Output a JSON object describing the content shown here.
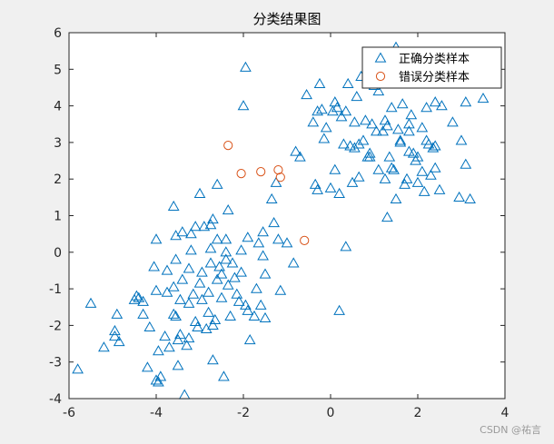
{
  "chart_data": {
    "type": "scatter",
    "title": "分类结果图",
    "xlabel": "",
    "ylabel": "",
    "xlim": [
      -6,
      4
    ],
    "ylim": [
      -4,
      6
    ],
    "xticks": [
      -6,
      -4,
      -2,
      0,
      2,
      4
    ],
    "yticks": [
      -4,
      -3,
      -2,
      -1,
      0,
      1,
      2,
      3,
      4,
      5,
      6
    ],
    "grid": false,
    "legend_position": "top-right",
    "series": [
      {
        "name": "正确分类样本",
        "marker": "triangle",
        "color": "#0072BD",
        "points": [
          [
            -5.8,
            -3.2
          ],
          [
            -5.5,
            -1.4
          ],
          [
            -5.2,
            -2.6
          ],
          [
            -4.95,
            -2.3
          ],
          [
            -4.95,
            -2.15
          ],
          [
            -4.9,
            -1.7
          ],
          [
            -4.85,
            -2.45
          ],
          [
            -4.5,
            -1.3
          ],
          [
            -4.45,
            -1.2
          ],
          [
            -4.4,
            -1.25
          ],
          [
            -4.3,
            -1.35
          ],
          [
            -4.3,
            -1.7
          ],
          [
            -4.15,
            -2.05
          ],
          [
            -4.2,
            -3.15
          ],
          [
            -4.0,
            -1.05
          ],
          [
            -4.05,
            -0.4
          ],
          [
            -4.0,
            0.35
          ],
          [
            -3.95,
            -2.7
          ],
          [
            -4.0,
            -3.5
          ],
          [
            -3.95,
            -3.55
          ],
          [
            -3.9,
            -3.4
          ],
          [
            -3.8,
            -2.3
          ],
          [
            -3.75,
            -1.1
          ],
          [
            -3.75,
            -0.5
          ],
          [
            -3.7,
            -2.6
          ],
          [
            -3.6,
            -1.7
          ],
          [
            -3.55,
            -1.75
          ],
          [
            -3.6,
            -0.95
          ],
          [
            -3.55,
            -0.2
          ],
          [
            -3.55,
            0.45
          ],
          [
            -3.6,
            1.25
          ],
          [
            -3.5,
            -2.4
          ],
          [
            -3.5,
            -3.1
          ],
          [
            -3.45,
            -2.25
          ],
          [
            -3.45,
            -1.3
          ],
          [
            -3.4,
            -0.75
          ],
          [
            -3.4,
            0.55
          ],
          [
            -3.35,
            -3.9
          ],
          [
            -3.3,
            -2.55
          ],
          [
            -3.25,
            -2.35
          ],
          [
            -3.25,
            -1.4
          ],
          [
            -3.25,
            -0.45
          ],
          [
            -3.2,
            0.5
          ],
          [
            -3.2,
            0.05
          ],
          [
            -3.15,
            -1.15
          ],
          [
            -3.1,
            0.7
          ],
          [
            -3.1,
            -1.9
          ],
          [
            -3.05,
            -2.05
          ],
          [
            -3.0,
            1.6
          ],
          [
            -3.0,
            -0.85
          ],
          [
            -2.95,
            -1.3
          ],
          [
            -2.95,
            -0.55
          ],
          [
            -2.9,
            0.7
          ],
          [
            -2.85,
            -2.1
          ],
          [
            -2.8,
            -1.1
          ],
          [
            -2.8,
            -1.65
          ],
          [
            -2.75,
            0.1
          ],
          [
            -2.75,
            0.75
          ],
          [
            -2.75,
            -0.3
          ],
          [
            -2.7,
            -2.0
          ],
          [
            -2.7,
            0.9
          ],
          [
            -2.7,
            -2.95
          ],
          [
            -2.65,
            -1.85
          ],
          [
            -2.6,
            -0.75
          ],
          [
            -2.6,
            1.85
          ],
          [
            -2.6,
            0.35
          ],
          [
            -2.55,
            -0.4
          ],
          [
            -2.5,
            -0.6
          ],
          [
            -2.5,
            -1.25
          ],
          [
            -2.45,
            -3.4
          ],
          [
            -2.4,
            -0.2
          ],
          [
            -2.4,
            0.35
          ],
          [
            -2.4,
            0.0
          ],
          [
            -2.35,
            1.15
          ],
          [
            -2.35,
            -0.9
          ],
          [
            -2.3,
            -1.75
          ],
          [
            -2.25,
            -0.3
          ],
          [
            -2.2,
            -0.7
          ],
          [
            -2.15,
            -1.15
          ],
          [
            -2.1,
            -1.35
          ],
          [
            -2.05,
            -0.55
          ],
          [
            -2.05,
            0.05
          ],
          [
            -2.0,
            4.0
          ],
          [
            -1.95,
            5.05
          ],
          [
            -1.95,
            -1.45
          ],
          [
            -1.9,
            -1.6
          ],
          [
            -1.9,
            0.4
          ],
          [
            -1.85,
            -2.4
          ],
          [
            -1.75,
            -1.75
          ],
          [
            -1.7,
            -1.0
          ],
          [
            -1.65,
            0.25
          ],
          [
            -1.6,
            -1.45
          ],
          [
            -1.55,
            -0.1
          ],
          [
            -1.55,
            0.55
          ],
          [
            -1.5,
            -1.8
          ],
          [
            -1.5,
            -0.6
          ],
          [
            -1.35,
            1.45
          ],
          [
            -1.3,
            0.8
          ],
          [
            -1.25,
            1.9
          ],
          [
            -1.2,
            0.35
          ],
          [
            -1.15,
            -1.05
          ],
          [
            -1.0,
            0.25
          ],
          [
            -0.85,
            -0.3
          ],
          [
            -0.8,
            2.75
          ],
          [
            -0.7,
            2.6
          ],
          [
            -0.55,
            4.3
          ],
          [
            -0.4,
            3.55
          ],
          [
            -0.35,
            1.85
          ],
          [
            -0.3,
            1.7
          ],
          [
            -0.3,
            3.85
          ],
          [
            -0.25,
            4.6
          ],
          [
            -0.2,
            3.9
          ],
          [
            -0.15,
            3.1
          ],
          [
            -0.1,
            3.4
          ],
          [
            0.0,
            1.75
          ],
          [
            0.05,
            3.85
          ],
          [
            0.1,
            4.1
          ],
          [
            0.1,
            2.25
          ],
          [
            0.15,
            3.95
          ],
          [
            0.2,
            -1.6
          ],
          [
            0.2,
            1.6
          ],
          [
            0.25,
            3.7
          ],
          [
            0.3,
            2.95
          ],
          [
            0.35,
            3.85
          ],
          [
            0.35,
            0.15
          ],
          [
            0.4,
            4.6
          ],
          [
            0.45,
            2.9
          ],
          [
            0.5,
            1.9
          ],
          [
            0.55,
            2.85
          ],
          [
            0.55,
            3.55
          ],
          [
            0.6,
            4.25
          ],
          [
            0.65,
            2.05
          ],
          [
            0.65,
            2.95
          ],
          [
            0.7,
            4.8
          ],
          [
            0.75,
            3.05
          ],
          [
            0.8,
            3.6
          ],
          [
            0.85,
            2.6
          ],
          [
            0.9,
            2.7
          ],
          [
            0.9,
            2.6
          ],
          [
            0.95,
            3.5
          ],
          [
            1.0,
            4.9
          ],
          [
            1.0,
            4.55
          ],
          [
            1.05,
            3.3
          ],
          [
            1.1,
            2.25
          ],
          [
            1.1,
            4.4
          ],
          [
            1.2,
            3.3
          ],
          [
            1.25,
            3.6
          ],
          [
            1.25,
            2.0
          ],
          [
            1.3,
            3.45
          ],
          [
            1.3,
            0.95
          ],
          [
            1.35,
            2.6
          ],
          [
            1.4,
            2.3
          ],
          [
            1.4,
            3.95
          ],
          [
            1.45,
            2.25
          ],
          [
            1.5,
            5.6
          ],
          [
            1.5,
            1.45
          ],
          [
            1.55,
            3.35
          ],
          [
            1.6,
            3.05
          ],
          [
            1.6,
            3.0
          ],
          [
            1.65,
            4.05
          ],
          [
            1.7,
            1.85
          ],
          [
            1.75,
            2.0
          ],
          [
            1.8,
            3.3
          ],
          [
            1.8,
            3.5
          ],
          [
            1.8,
            2.75
          ],
          [
            1.85,
            3.75
          ],
          [
            1.9,
            2.7
          ],
          [
            1.95,
            2.5
          ],
          [
            2.0,
            2.6
          ],
          [
            2.0,
            1.9
          ],
          [
            2.1,
            2.2
          ],
          [
            2.1,
            3.4
          ],
          [
            2.15,
            1.65
          ],
          [
            2.2,
            3.05
          ],
          [
            2.2,
            3.95
          ],
          [
            2.25,
            2.95
          ],
          [
            2.3,
            2.1
          ],
          [
            2.35,
            2.85
          ],
          [
            2.4,
            2.9
          ],
          [
            2.4,
            4.1
          ],
          [
            2.4,
            2.3
          ],
          [
            2.5,
            1.7
          ],
          [
            2.55,
            4.0
          ],
          [
            2.8,
            3.55
          ],
          [
            2.95,
            1.5
          ],
          [
            3.0,
            3.05
          ],
          [
            3.1,
            2.4
          ],
          [
            3.1,
            4.1
          ],
          [
            3.2,
            1.45
          ],
          [
            3.5,
            4.2
          ]
        ]
      },
      {
        "name": "错误分类样本",
        "marker": "circle",
        "color": "#D95319",
        "points": [
          [
            -2.35,
            2.92
          ],
          [
            -2.05,
            2.15
          ],
          [
            -1.6,
            2.2
          ],
          [
            -1.2,
            2.25
          ],
          [
            -1.15,
            2.05
          ],
          [
            -0.6,
            0.32
          ]
        ]
      }
    ]
  },
  "watermark": "CSDN @祐言"
}
